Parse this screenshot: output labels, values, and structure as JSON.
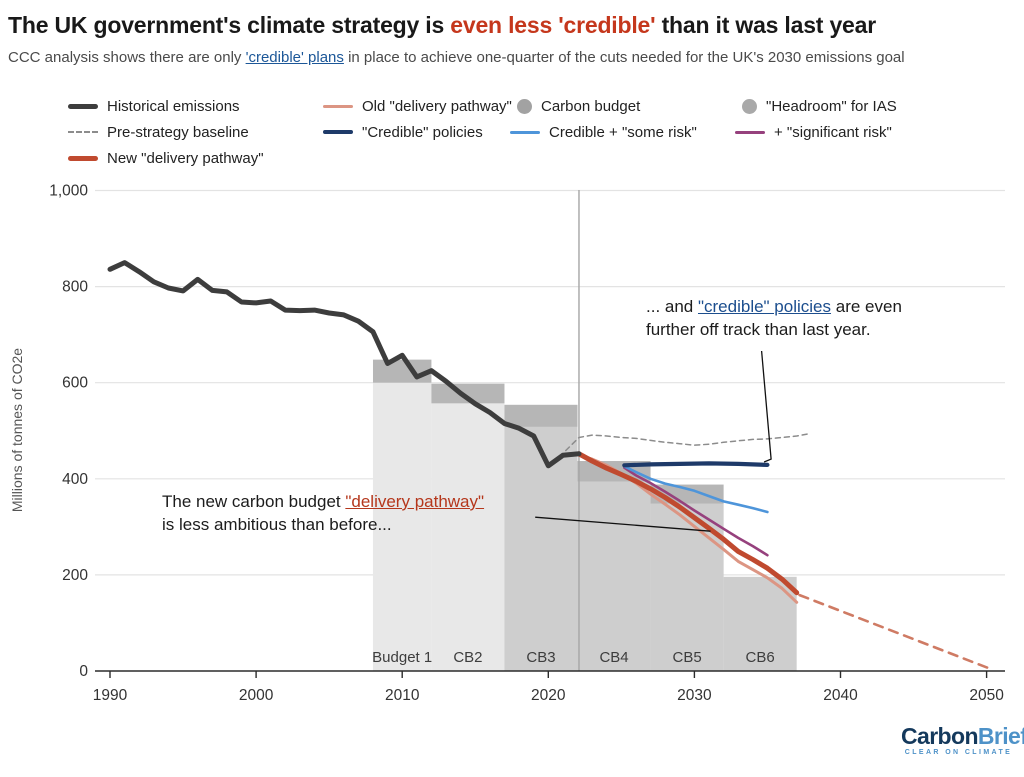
{
  "header": {
    "title_prefix": "The UK government's climate strategy is ",
    "title_highlight": "even less 'credible' ",
    "title_suffix": "than it was last year",
    "subtitle_prefix": "CCC analysis shows there are only ",
    "subtitle_link": "'credible' plans",
    "subtitle_suffix": " in place to achieve one-quarter of the cuts needed for the UK's 2030 emissions goal"
  },
  "legend": {
    "items": [
      {
        "label": "Historical emissions",
        "type": "thick",
        "color": "#3d3d3d"
      },
      {
        "label": "Old \"delivery pathway\"",
        "type": "line",
        "color": "#dc9583"
      },
      {
        "label": "Carbon budget",
        "type": "dot",
        "color": "#a2a2a2"
      },
      {
        "label": "\"Headroom\" for IAS",
        "type": "dot",
        "color": "#a9a9a9"
      },
      {
        "label": "Pre-strategy baseline",
        "type": "dash",
        "color": "#8c8c8c"
      },
      {
        "label": "\"Credible\" policies",
        "type": "line4",
        "color": "#1e3a69"
      },
      {
        "label": "Credible + \"some risk\"",
        "type": "line",
        "color": "#4e95da"
      },
      {
        "label": "+ \"significant risk\"",
        "type": "line",
        "color": "#96417d"
      },
      {
        "label": "New \"delivery pathway\"",
        "type": "thick",
        "color": "#c04a2f"
      }
    ]
  },
  "annotations": {
    "pathway_note": {
      "line1_prefix": "The new carbon budget ",
      "line1_link": "\"delivery pathway\"",
      "line2": "is less ambitious than before..."
    },
    "credible_note": {
      "prefix": "... and ",
      "link": "\"credible\" policies",
      "suffix": " are even",
      "line2": "further off track than last year."
    }
  },
  "chart_data": {
    "type": "line",
    "ylabel": "Millions of tonnes of CO2e",
    "ylim": [
      0,
      1000
    ],
    "xlim": [
      1989,
      2051
    ],
    "grid": true,
    "yticks": [
      0,
      200,
      400,
      600,
      800,
      1000
    ],
    "ytick_labels": [
      "0",
      "200",
      "400",
      "600",
      "800",
      "1,000"
    ],
    "xticks": [
      1990,
      2000,
      2010,
      2020,
      2030,
      2040,
      2050
    ],
    "now_line_x": 2022.1,
    "budgets": [
      {
        "label": "Budget 1",
        "start": 2008,
        "end": 2012,
        "total": 648,
        "budget_level": 600,
        "body": "light"
      },
      {
        "label": "CB2",
        "start": 2012,
        "end": 2017,
        "total": 598,
        "budget_level": 557,
        "body": "light"
      },
      {
        "label": "CB3",
        "start": 2017,
        "end": 2022,
        "total": 554,
        "budget_level": 508,
        "body": "mid"
      },
      {
        "label": "CB4",
        "start": 2022,
        "end": 2027,
        "total": 437,
        "budget_level": 394,
        "body": "mid"
      },
      {
        "label": "CB5",
        "start": 2027,
        "end": 2032,
        "total": 388,
        "budget_level": 348,
        "body": "mid"
      },
      {
        "label": "CB6",
        "start": 2032,
        "end": 2037,
        "total": 196,
        "budget_level": 196,
        "body": "mid"
      }
    ],
    "bar_colors": {
      "light": "#e8e8e8",
      "mid": "#cecece",
      "band": "#b6b6b6"
    },
    "series": [
      {
        "name": "Pre-strategy baseline",
        "color": "#8c8c8c",
        "width": 1.5,
        "dash": "5 4",
        "points": [
          [
            2021.2,
            459
          ],
          [
            2022.1,
            486
          ],
          [
            2023,
            491
          ],
          [
            2024,
            489
          ],
          [
            2025,
            486
          ],
          [
            2026,
            484
          ],
          [
            2027,
            480
          ],
          [
            2028,
            476
          ],
          [
            2029,
            473
          ],
          [
            2030,
            470
          ],
          [
            2031,
            472
          ],
          [
            2032,
            476
          ],
          [
            2033,
            479
          ],
          [
            2034,
            482
          ],
          [
            2035,
            483
          ],
          [
            2036,
            486
          ],
          [
            2037,
            489
          ],
          [
            2037.9,
            494
          ]
        ]
      },
      {
        "name": "Old \"delivery pathway\"",
        "color": "#dc9583",
        "width": 3,
        "points": [
          [
            2022.1,
            449
          ],
          [
            2023,
            441
          ],
          [
            2024,
            428
          ],
          [
            2025,
            411
          ],
          [
            2026,
            391
          ],
          [
            2027,
            368
          ],
          [
            2028,
            347
          ],
          [
            2029,
            325
          ],
          [
            2030,
            301
          ],
          [
            2031,
            277
          ],
          [
            2032,
            253
          ],
          [
            2033,
            228
          ],
          [
            2034,
            211
          ],
          [
            2035,
            194
          ],
          [
            2036,
            172
          ],
          [
            2037,
            143
          ]
        ]
      },
      {
        "name": "+ \"significant risk\"",
        "color": "#96417d",
        "width": 2.6,
        "points": [
          [
            2025.2,
            423
          ],
          [
            2026,
            407
          ],
          [
            2027,
            391
          ],
          [
            2028,
            373
          ],
          [
            2029,
            354
          ],
          [
            2030,
            334
          ],
          [
            2031,
            315
          ],
          [
            2032,
            296
          ],
          [
            2033,
            277
          ],
          [
            2034,
            260
          ],
          [
            2035,
            241
          ]
        ]
      },
      {
        "name": "Credible + \"some risk\"",
        "color": "#4e95da",
        "width": 2.6,
        "points": [
          [
            2025.2,
            426
          ],
          [
            2026,
            414
          ],
          [
            2027,
            400
          ],
          [
            2028,
            390
          ],
          [
            2029,
            383
          ],
          [
            2030,
            375
          ],
          [
            2031,
            364
          ],
          [
            2032,
            353
          ],
          [
            2033,
            346
          ],
          [
            2034,
            339
          ],
          [
            2035,
            331
          ]
        ]
      },
      {
        "name": "\"Credible\" policies",
        "color": "#1e3a69",
        "width": 4.2,
        "points": [
          [
            2025.2,
            428
          ],
          [
            2027,
            430
          ],
          [
            2029,
            431
          ],
          [
            2031,
            432
          ],
          [
            2033,
            431
          ],
          [
            2035,
            429
          ]
        ]
      },
      {
        "name": "New pathway extension",
        "color": "#cf7b64",
        "width": 2.6,
        "dash": "9 7",
        "points": [
          [
            2037.2,
            158
          ],
          [
            2050.4,
            3
          ]
        ]
      },
      {
        "name": "New \"delivery pathway\"",
        "color": "#c04a2f",
        "width": 5,
        "points": [
          [
            2022.1,
            452
          ],
          [
            2023,
            437
          ],
          [
            2024,
            422
          ],
          [
            2025,
            409
          ],
          [
            2026,
            395
          ],
          [
            2027,
            379
          ],
          [
            2028,
            361
          ],
          [
            2029,
            341
          ],
          [
            2030,
            319
          ],
          [
            2031,
            297
          ],
          [
            2032,
            274
          ],
          [
            2033,
            249
          ],
          [
            2034,
            232
          ],
          [
            2035,
            214
          ],
          [
            2036,
            191
          ],
          [
            2037,
            163
          ]
        ]
      },
      {
        "name": "Historical emissions",
        "color": "#3d3d3d",
        "width": 5,
        "points": [
          [
            1990,
            836
          ],
          [
            1991,
            850
          ],
          [
            1992,
            831
          ],
          [
            1993,
            810
          ],
          [
            1994,
            797
          ],
          [
            1995,
            791
          ],
          [
            1996,
            815
          ],
          [
            1997,
            792
          ],
          [
            1998,
            789
          ],
          [
            1999,
            768
          ],
          [
            2000,
            766
          ],
          [
            2001,
            770
          ],
          [
            2002,
            751
          ],
          [
            2003,
            750
          ],
          [
            2004,
            751
          ],
          [
            2005,
            745
          ],
          [
            2006,
            741
          ],
          [
            2007,
            728
          ],
          [
            2008,
            706
          ],
          [
            2009,
            640
          ],
          [
            2010,
            657
          ],
          [
            2011,
            612
          ],
          [
            2012,
            625
          ],
          [
            2013,
            603
          ],
          [
            2014,
            578
          ],
          [
            2015,
            556
          ],
          [
            2016,
            538
          ],
          [
            2017,
            515
          ],
          [
            2018,
            505
          ],
          [
            2019,
            489
          ],
          [
            2020,
            427
          ],
          [
            2021,
            449
          ],
          [
            2022.1,
            452
          ]
        ]
      }
    ],
    "annotation_lines": [
      {
        "name": "pathway-note-pointer",
        "points": [
          [
            2019.1,
            320
          ],
          [
            2031.1,
            291
          ]
        ]
      },
      {
        "name": "credible-note-pointer",
        "points": [
          [
            2034.6,
            666
          ],
          [
            2035.25,
            441
          ],
          [
            2034.77,
            435
          ]
        ]
      }
    ],
    "legend_position": "top",
    "divider_color": "#a6a6a6",
    "grid_color": "#e3e3e3",
    "axis_color": "#2b2b2b"
  },
  "footer": {
    "brand_bold": "Carbon",
    "brand_light": "Brief",
    "tagline": "CLEAR ON CLIMATE"
  }
}
